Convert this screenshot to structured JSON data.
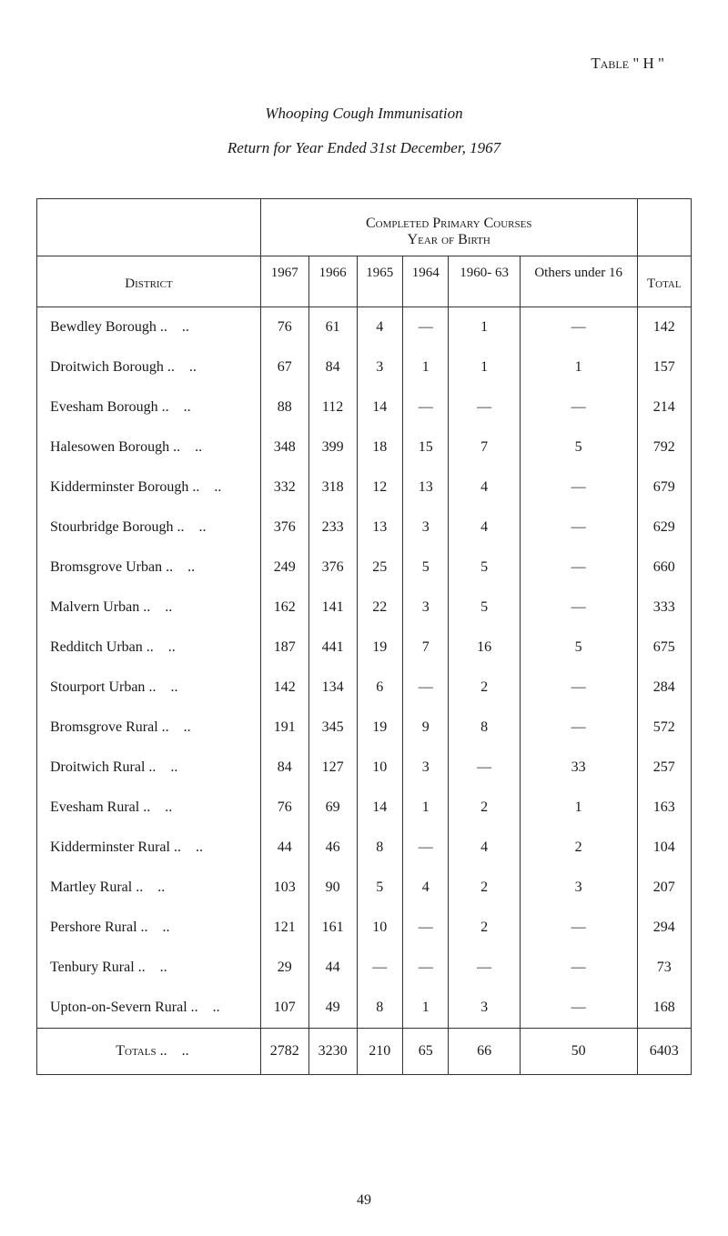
{
  "table_label": "Table \" H \"",
  "title": "Whooping Cough Immunisation",
  "subtitle": "Return for Year Ended 31st December, 1967",
  "header_block": "Completed Primary Courses\nYear of Birth",
  "header_block_line1": "Completed Primary Courses",
  "header_block_line2": "Year of Birth",
  "columns": {
    "district": "District",
    "y1967": "1967",
    "y1966": "1966",
    "y1965": "1965",
    "y1964": "1964",
    "y1960_63": "1960-\n63",
    "others": "Others under 16",
    "total": "Total"
  },
  "rows": [
    {
      "district": "Bewdley Borough",
      "y1967": "76",
      "y1966": "61",
      "y1965": "4",
      "y1964": "—",
      "y1960_63": "1",
      "others": "—",
      "total": "142"
    },
    {
      "district": "Droitwich Borough",
      "y1967": "67",
      "y1966": "84",
      "y1965": "3",
      "y1964": "1",
      "y1960_63": "1",
      "others": "1",
      "total": "157"
    },
    {
      "district": "Evesham Borough",
      "y1967": "88",
      "y1966": "112",
      "y1965": "14",
      "y1964": "—",
      "y1960_63": "—",
      "others": "—",
      "total": "214"
    },
    {
      "district": "Halesowen Borough",
      "y1967": "348",
      "y1966": "399",
      "y1965": "18",
      "y1964": "15",
      "y1960_63": "7",
      "others": "5",
      "total": "792"
    },
    {
      "district": "Kidderminster Borough",
      "y1967": "332",
      "y1966": "318",
      "y1965": "12",
      "y1964": "13",
      "y1960_63": "4",
      "others": "—",
      "total": "679"
    },
    {
      "district": "Stourbridge Borough",
      "y1967": "376",
      "y1966": "233",
      "y1965": "13",
      "y1964": "3",
      "y1960_63": "4",
      "others": "—",
      "total": "629"
    },
    {
      "district": "Bromsgrove Urban",
      "y1967": "249",
      "y1966": "376",
      "y1965": "25",
      "y1964": "5",
      "y1960_63": "5",
      "others": "—",
      "total": "660"
    },
    {
      "district": "Malvern Urban",
      "y1967": "162",
      "y1966": "141",
      "y1965": "22",
      "y1964": "3",
      "y1960_63": "5",
      "others": "—",
      "total": "333"
    },
    {
      "district": "Redditch Urban",
      "y1967": "187",
      "y1966": "441",
      "y1965": "19",
      "y1964": "7",
      "y1960_63": "16",
      "others": "5",
      "total": "675"
    },
    {
      "district": "Stourport Urban",
      "y1967": "142",
      "y1966": "134",
      "y1965": "6",
      "y1964": "—",
      "y1960_63": "2",
      "others": "—",
      "total": "284"
    },
    {
      "district": "Bromsgrove Rural",
      "y1967": "191",
      "y1966": "345",
      "y1965": "19",
      "y1964": "9",
      "y1960_63": "8",
      "others": "—",
      "total": "572"
    },
    {
      "district": "Droitwich Rural",
      "y1967": "84",
      "y1966": "127",
      "y1965": "10",
      "y1964": "3",
      "y1960_63": "—",
      "others": "33",
      "total": "257"
    },
    {
      "district": "Evesham Rural",
      "y1967": "76",
      "y1966": "69",
      "y1965": "14",
      "y1964": "1",
      "y1960_63": "2",
      "others": "1",
      "total": "163"
    },
    {
      "district": "Kidderminster Rural",
      "y1967": "44",
      "y1966": "46",
      "y1965": "8",
      "y1964": "—",
      "y1960_63": "4",
      "others": "2",
      "total": "104"
    },
    {
      "district": "Martley Rural",
      "y1967": "103",
      "y1966": "90",
      "y1965": "5",
      "y1964": "4",
      "y1960_63": "2",
      "others": "3",
      "total": "207"
    },
    {
      "district": "Pershore Rural",
      "y1967": "121",
      "y1966": "161",
      "y1965": "10",
      "y1964": "—",
      "y1960_63": "2",
      "others": "—",
      "total": "294"
    },
    {
      "district": "Tenbury Rural",
      "y1967": "29",
      "y1966": "44",
      "y1965": "—",
      "y1964": "—",
      "y1960_63": "—",
      "others": "—",
      "total": "73"
    },
    {
      "district": "Upton-on-Severn Rural",
      "y1967": "107",
      "y1966": "49",
      "y1965": "8",
      "y1964": "1",
      "y1960_63": "3",
      "others": "—",
      "total": "168"
    }
  ],
  "totals": {
    "label": "Totals",
    "y1967": "2782",
    "y1966": "3230",
    "y1965": "210",
    "y1964": "65",
    "y1960_63": "66",
    "others": "50",
    "total": "6403"
  },
  "page_number": "49",
  "style": {
    "font_family": "Times New Roman",
    "body_fontsize": 16,
    "border_color": "#333333",
    "background": "#ffffff",
    "text_color": "#1a1a1a"
  }
}
